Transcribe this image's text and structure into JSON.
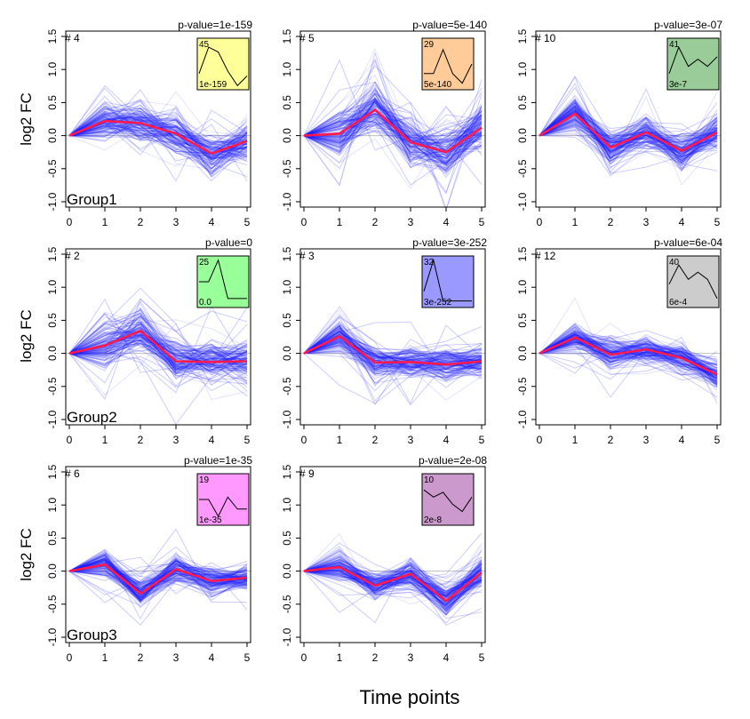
{
  "figure": {
    "xlabel": "Time points",
    "ylabel": "log2 FC"
  },
  "chart_data": [
    {
      "type": "line",
      "id": "# 4",
      "pvalue": "p-value=1e-159",
      "group": "Group1",
      "x": [
        0,
        1,
        2,
        3,
        4,
        5
      ],
      "mean": [
        0,
        0.22,
        0.19,
        0.03,
        -0.27,
        -0.08
      ],
      "spread": 0.28,
      "ylim": [
        -1,
        1.5
      ],
      "yticks": [
        "-1.0",
        "-0.5",
        "0.0",
        "0.5",
        "1.0",
        "1.5"
      ],
      "xticks": [
        "0",
        "1",
        "2",
        "3",
        "4",
        "5"
      ],
      "inset": {
        "count": "45",
        "pval": "1e-159",
        "color": "#ffff99",
        "profile": [
          0.3,
          0.85,
          0.75,
          0.35,
          0.05,
          0.25
        ]
      }
    },
    {
      "type": "line",
      "id": "# 5",
      "pvalue": "p-value=5e-140",
      "group": "",
      "x": [
        0,
        1,
        2,
        3,
        4,
        5
      ],
      "mean": [
        0,
        0.03,
        0.39,
        -0.1,
        -0.25,
        0.12
      ],
      "spread": 0.32,
      "ylim": [
        -1,
        1.5
      ],
      "yticks": [
        "-1.0",
        "-0.5",
        "0.0",
        "0.5",
        "1.0",
        "1.5"
      ],
      "xticks": [
        "0",
        "1",
        "2",
        "3",
        "4",
        "5"
      ],
      "inset": {
        "count": "29",
        "pval": "5e-140",
        "color": "#ffcc99",
        "profile": [
          0.3,
          0.3,
          0.8,
          0.3,
          0.1,
          0.5
        ]
      }
    },
    {
      "type": "line",
      "id": "# 10",
      "pvalue": "p-value=3e-07",
      "group": "",
      "x": [
        0,
        1,
        2,
        3,
        4,
        5
      ],
      "mean": [
        0,
        0.33,
        -0.18,
        0.05,
        -0.23,
        0.05
      ],
      "spread": 0.22,
      "ylim": [
        -1,
        1.5
      ],
      "yticks": [
        "-1.0",
        "-0.5",
        "0.0",
        "0.5",
        "1.0",
        "1.5"
      ],
      "xticks": [
        "0",
        "1",
        "2",
        "3",
        "4",
        "5"
      ],
      "inset": {
        "count": "41",
        "pval": "3e-7",
        "color": "#99cc99",
        "profile": [
          0.3,
          0.85,
          0.45,
          0.6,
          0.45,
          0.65
        ]
      }
    },
    {
      "type": "line",
      "id": "# 2",
      "pvalue": "p-value=0",
      "group": "Group2",
      "x": [
        0,
        1,
        2,
        3,
        4,
        5
      ],
      "mean": [
        0,
        0.12,
        0.34,
        -0.12,
        -0.13,
        -0.12
      ],
      "spread": 0.3,
      "ylim": [
        -1,
        1.5
      ],
      "yticks": [
        "-1.0",
        "-0.5",
        "0.0",
        "0.5",
        "1.0",
        "1.5"
      ],
      "xticks": [
        "0",
        "1",
        "2",
        "3",
        "4",
        "5"
      ],
      "inset": {
        "count": "25",
        "pval": "0.0",
        "color": "#99ff99",
        "profile": [
          0.5,
          0.5,
          0.95,
          0.15,
          0.15,
          0.15
        ]
      }
    },
    {
      "type": "line",
      "id": "# 3",
      "pvalue": "p-value=3e-252",
      "group": "",
      "x": [
        0,
        1,
        2,
        3,
        4,
        5
      ],
      "mean": [
        0,
        0.26,
        -0.14,
        -0.13,
        -0.17,
        -0.12
      ],
      "spread": 0.22,
      "ylim": [
        -1,
        1.5
      ],
      "yticks": [
        "-1.0",
        "-0.5",
        "0.0",
        "0.5",
        "1.0",
        "1.5"
      ],
      "xticks": [
        "0",
        "1",
        "2",
        "3",
        "4",
        "5"
      ],
      "inset": {
        "count": "32",
        "pval": "3e-252",
        "color": "#9999ff",
        "profile": [
          0.3,
          0.95,
          0.1,
          0.1,
          0.1,
          0.1
        ]
      }
    },
    {
      "type": "line",
      "id": "# 12",
      "pvalue": "p-value=6e-04",
      "group": "",
      "x": [
        0,
        1,
        2,
        3,
        4,
        5
      ],
      "mean": [
        0,
        0.24,
        -0.02,
        0.06,
        -0.07,
        -0.32
      ],
      "spread": 0.18,
      "ylim": [
        -1,
        1.5
      ],
      "yticks": [
        "-1.0",
        "-0.5",
        "0.0",
        "0.5",
        "1.0",
        "1.5"
      ],
      "xticks": [
        "0",
        "1",
        "2",
        "3",
        "4",
        "5"
      ],
      "inset": {
        "count": "40",
        "pval": "6e-4",
        "color": "#cccccc",
        "profile": [
          0.45,
          0.85,
          0.55,
          0.7,
          0.55,
          0.15
        ]
      }
    },
    {
      "type": "line",
      "id": "# 6",
      "pvalue": "p-value=1e-35",
      "group": "Group3",
      "x": [
        0,
        1,
        2,
        3,
        4,
        5
      ],
      "mean": [
        0,
        0.1,
        -0.34,
        0.03,
        -0.15,
        -0.1
      ],
      "spread": 0.18,
      "ylim": [
        -1,
        1.5
      ],
      "yticks": [
        "-1.0",
        "-0.5",
        "0.0",
        "0.5",
        "1.0",
        "1.5"
      ],
      "xticks": [
        "0",
        "1",
        "2",
        "3",
        "4",
        "5"
      ],
      "inset": {
        "count": "19",
        "pval": "1e-35",
        "color": "#ff99ff",
        "profile": [
          0.5,
          0.5,
          0.15,
          0.55,
          0.3,
          0.3
        ]
      }
    },
    {
      "type": "line",
      "id": "# 9",
      "pvalue": "p-value=2e-08",
      "group": "",
      "x": [
        0,
        1,
        2,
        3,
        4,
        5
      ],
      "mean": [
        0,
        0.06,
        -0.22,
        -0.04,
        -0.45,
        -0.02
      ],
      "spread": 0.2,
      "ylim": [
        -1,
        1.5
      ],
      "yticks": [
        "-1.0",
        "-0.5",
        "0.0",
        "0.5",
        "1.0",
        "1.5"
      ],
      "xticks": [
        "0",
        "1",
        "2",
        "3",
        "4",
        "5"
      ],
      "inset": {
        "count": "10",
        "pval": "2e-8",
        "color": "#cc99cc",
        "profile": [
          0.7,
          0.55,
          0.65,
          0.4,
          0.25,
          0.55
        ]
      }
    }
  ]
}
